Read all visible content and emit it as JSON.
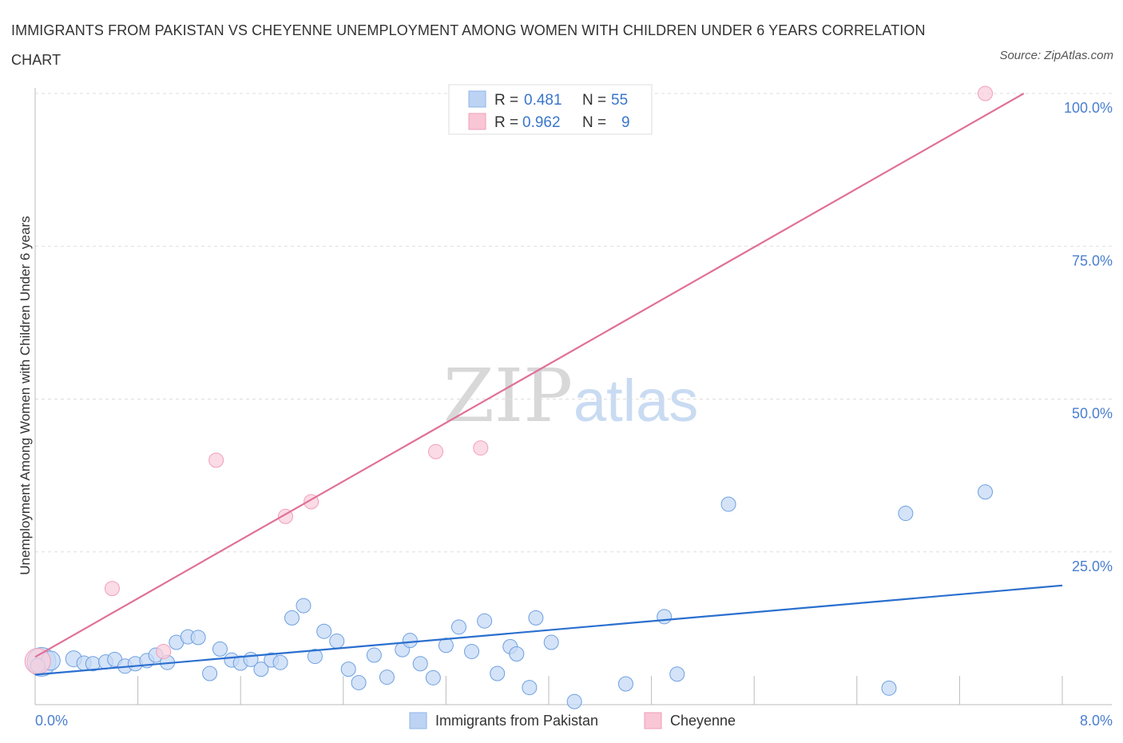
{
  "title": "IMMIGRANTS FROM PAKISTAN VS CHEYENNE UNEMPLOYMENT AMONG WOMEN WITH CHILDREN UNDER 6 YEARS CORRELATION CHART",
  "source": "Source: ZipAtlas.com",
  "watermark": {
    "zip": "ZIP",
    "atlas": "atlas"
  },
  "colors": {
    "blue": "#6ea0e0",
    "blue_line": "#2a6fcf",
    "pink": "#f0a0b8",
    "pink_line": "#e07098",
    "grid": "#dddddd"
  },
  "legend": {
    "r_label": "R =",
    "n_label": "N =",
    "rows": [
      {
        "r": "0.481",
        "n": "55"
      },
      {
        "r": "0.962",
        "n": "9"
      }
    ]
  },
  "chart_data": {
    "type": "scatter",
    "ylabel": "Unemployment Among Women with Children Under 6 years",
    "xlim": [
      0,
      8
    ],
    "ylim": [
      0,
      100
    ],
    "x_tick_labels": [
      "0.0%",
      "8.0%"
    ],
    "y_ticks": [
      25,
      50,
      75,
      100
    ],
    "y_tick_labels": [
      "25.0%",
      "50.0%",
      "75.0%",
      "100.0%"
    ],
    "grid": true,
    "series": [
      {
        "name": "Immigrants from Pakistan",
        "trend": [
          [
            0,
            4.9
          ],
          [
            8,
            19.5
          ]
        ],
        "points": [
          [
            0.05,
            7.0,
            18
          ],
          [
            0.12,
            7.2,
            12
          ],
          [
            0.3,
            7.5,
            10
          ],
          [
            0.38,
            6.8,
            9
          ],
          [
            0.45,
            6.7,
            9
          ],
          [
            0.55,
            7.0,
            9
          ],
          [
            0.62,
            7.4,
            9
          ],
          [
            0.7,
            6.3,
            9
          ],
          [
            0.78,
            6.7,
            9
          ],
          [
            0.87,
            7.2,
            9
          ],
          [
            0.94,
            8.1,
            9
          ],
          [
            1.03,
            6.9,
            9
          ],
          [
            1.1,
            10.2,
            9
          ],
          [
            1.19,
            11.1,
            9
          ],
          [
            1.27,
            11.0,
            9
          ],
          [
            1.36,
            5.1,
            9
          ],
          [
            1.44,
            9.1,
            9
          ],
          [
            1.53,
            7.3,
            9
          ],
          [
            1.6,
            6.8,
            9
          ],
          [
            1.68,
            7.4,
            9
          ],
          [
            1.76,
            5.8,
            9
          ],
          [
            1.84,
            7.3,
            9
          ],
          [
            1.91,
            6.9,
            9
          ],
          [
            2.0,
            14.2,
            9
          ],
          [
            2.09,
            16.2,
            9
          ],
          [
            2.18,
            7.9,
            9
          ],
          [
            2.25,
            12.0,
            9
          ],
          [
            2.35,
            10.4,
            9
          ],
          [
            2.44,
            5.8,
            9
          ],
          [
            2.52,
            3.6,
            9
          ],
          [
            2.64,
            8.1,
            9
          ],
          [
            2.74,
            4.5,
            9
          ],
          [
            2.86,
            9.0,
            9
          ],
          [
            2.92,
            10.5,
            9
          ],
          [
            3.0,
            6.7,
            9
          ],
          [
            3.1,
            4.4,
            9
          ],
          [
            3.2,
            9.7,
            9
          ],
          [
            3.3,
            12.7,
            9
          ],
          [
            3.4,
            8.7,
            9
          ],
          [
            3.5,
            13.7,
            9
          ],
          [
            3.6,
            5.1,
            9
          ],
          [
            3.7,
            9.5,
            9
          ],
          [
            3.75,
            8.3,
            9
          ],
          [
            3.85,
            2.8,
            9
          ],
          [
            3.9,
            14.2,
            9
          ],
          [
            4.02,
            10.2,
            9
          ],
          [
            4.2,
            0.5,
            9
          ],
          [
            4.6,
            3.4,
            9
          ],
          [
            4.9,
            14.4,
            9
          ],
          [
            5.0,
            5.0,
            9
          ],
          [
            5.4,
            32.8,
            9
          ],
          [
            6.65,
            2.7,
            9
          ],
          [
            6.78,
            31.3,
            9
          ],
          [
            7.4,
            34.8,
            9
          ],
          [
            0.02,
            6.4,
            9
          ]
        ]
      },
      {
        "name": "Cheyenne",
        "trend": [
          [
            0,
            7.8
          ],
          [
            7.7,
            100
          ]
        ],
        "points": [
          [
            0.02,
            7.1,
            16
          ],
          [
            0.6,
            19.0,
            9
          ],
          [
            1.0,
            8.7,
            9
          ],
          [
            1.41,
            40.0,
            9
          ],
          [
            1.95,
            30.8,
            9
          ],
          [
            2.15,
            33.2,
            9
          ],
          [
            3.12,
            41.4,
            9
          ],
          [
            3.47,
            42.0,
            9
          ],
          [
            7.4,
            100.0,
            9
          ]
        ]
      }
    ]
  }
}
